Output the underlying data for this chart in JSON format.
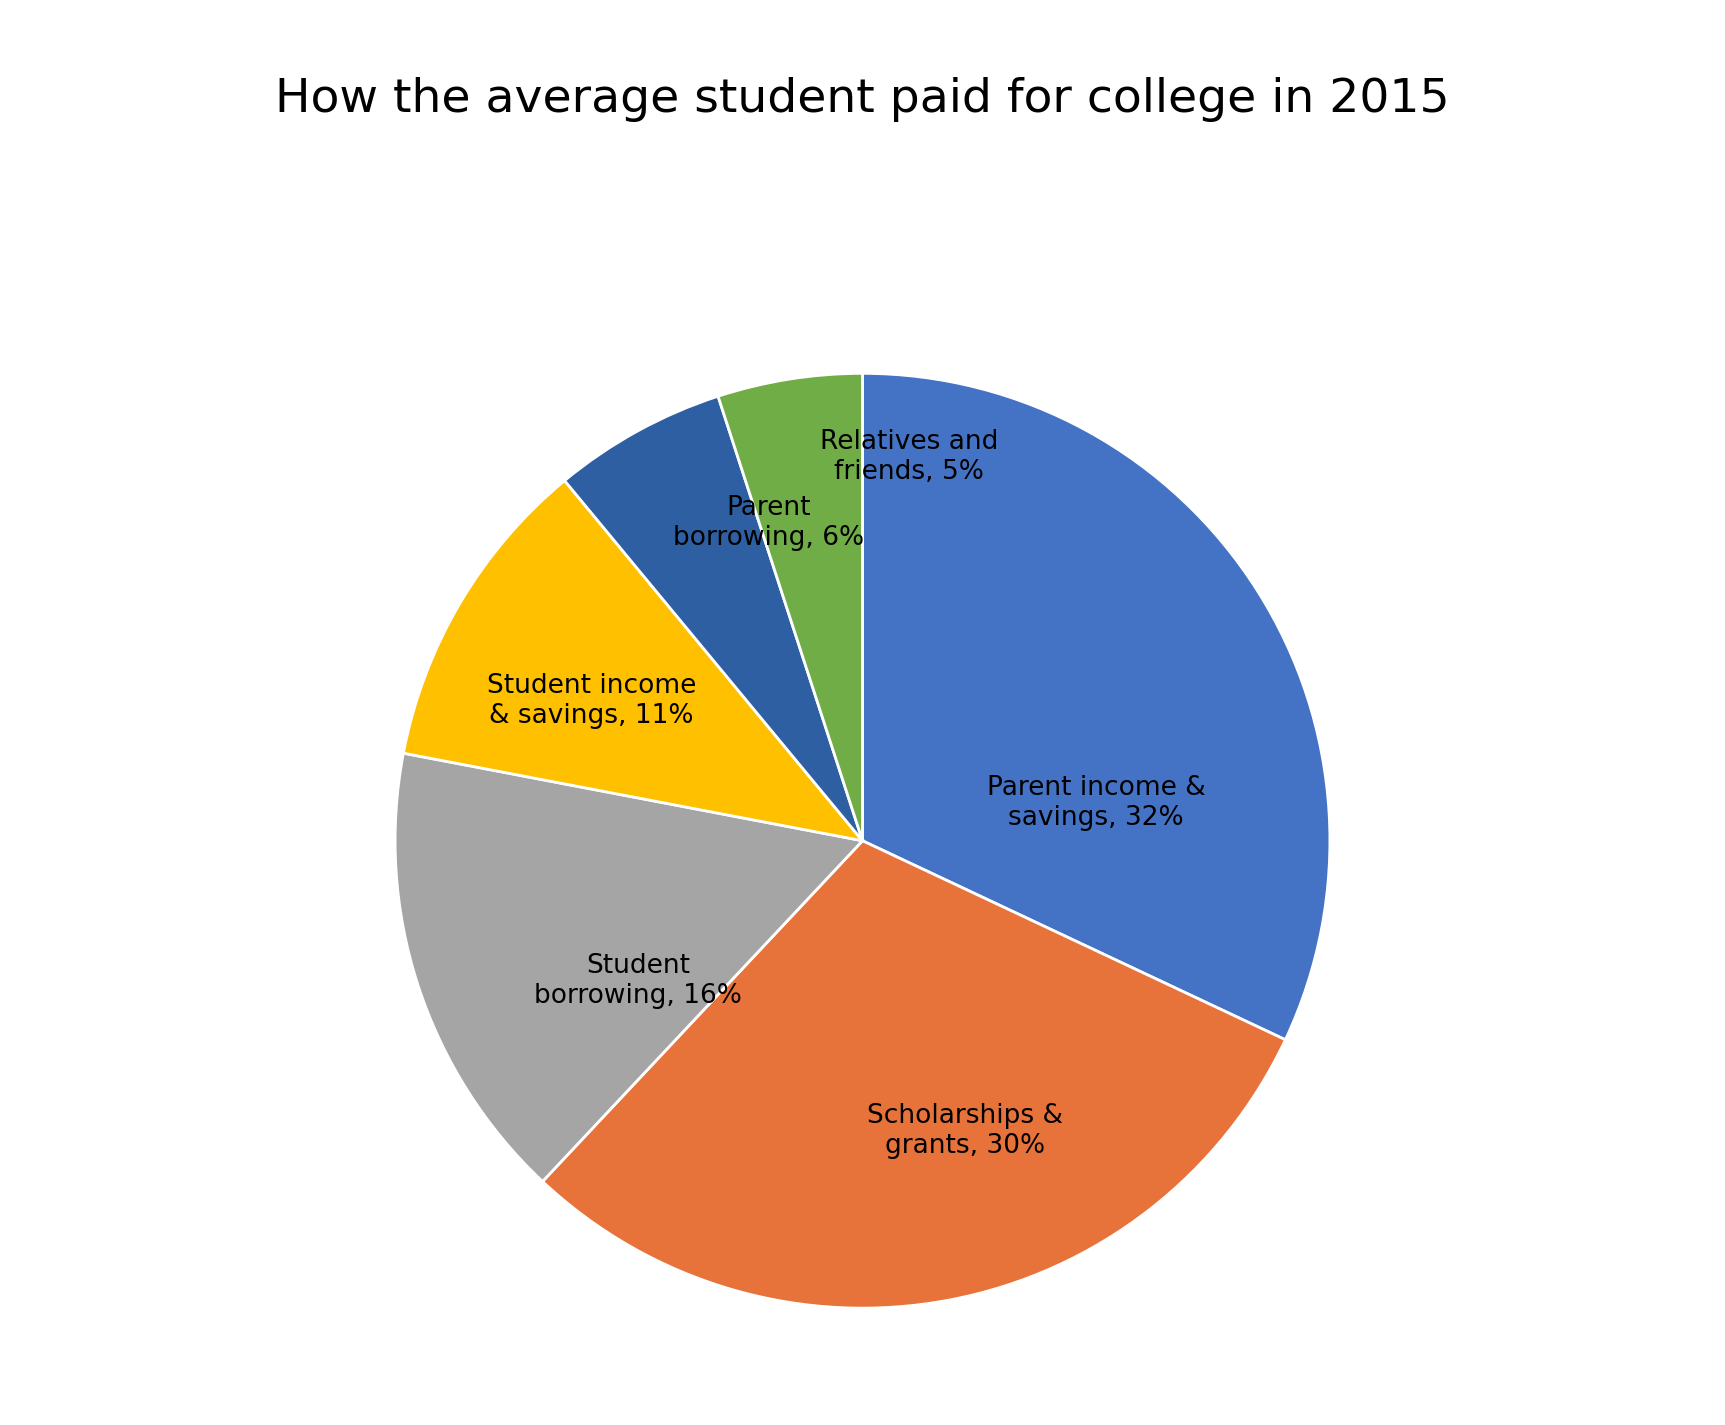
{
  "title": "How the average student paid for college in 2015",
  "title_fontsize": 34,
  "slices": [
    {
      "label": "Parent income &\nsavings, 32%",
      "value": 32,
      "color": "#4472C4"
    },
    {
      "label": "Scholarships &\ngrants, 30%",
      "value": 30,
      "color": "#E8733A"
    },
    {
      "label": "Student\nborrowing, 16%",
      "value": 16,
      "color": "#A5A5A5"
    },
    {
      "label": "Student income\n& savings, 11%",
      "value": 11,
      "color": "#FFC000"
    },
    {
      "label": "Parent\nborrowing, 6%",
      "value": 6,
      "color": "#2E5FA3"
    },
    {
      "label": "Relatives and\nfriends, 5%",
      "value": 5,
      "color": "#70AD47"
    }
  ],
  "slice_colors": [
    "#4472C4",
    "#E8733A",
    "#A5A5A5",
    "#FFC000",
    "#2E5FA3",
    "#70AD47"
  ],
  "label_fontsize": 19,
  "background_color": "#FFFFFF",
  "startangle": 90
}
